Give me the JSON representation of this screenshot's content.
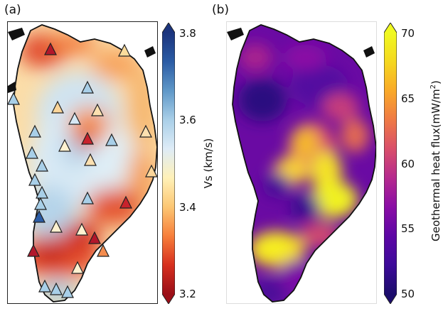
{
  "panels": [
    {
      "label": "(a)",
      "colorbar": {
        "title": "Vs (km/s)",
        "ticks": [
          "3.8",
          "3.6",
          "3.4",
          "3.2"
        ],
        "tick_values": [
          3.8,
          3.6,
          3.4,
          3.2
        ],
        "range": [
          3.2,
          3.8
        ],
        "colors": [
          "#9b0f18",
          "#d7301f",
          "#f77f3b",
          "#fcc774",
          "#fff1b8",
          "#deecf7",
          "#a9cfe8",
          "#5f98c8",
          "#2b5ca5",
          "#1b347d"
        ],
        "extend": "both"
      },
      "stations": {
        "symbol": "triangle",
        "count": 31
      }
    },
    {
      "label": "(b)",
      "colorbar": {
        "title": "Geothermal heat flux(mW/m",
        "title_superscript": "2",
        "title_suffix": ")",
        "ticks": [
          "70",
          "65",
          "60",
          "55",
          "50"
        ],
        "tick_values": [
          70,
          65,
          60,
          55,
          50
        ],
        "range": [
          50,
          70
        ],
        "colors": [
          "#1b0c6b",
          "#3d0a9a",
          "#5d06a5",
          "#8a0da5",
          "#b52a8e",
          "#d94f6a",
          "#ef7a45",
          "#f9a928",
          "#f5d81f",
          "#f0f921"
        ],
        "extend": "both"
      }
    }
  ]
}
